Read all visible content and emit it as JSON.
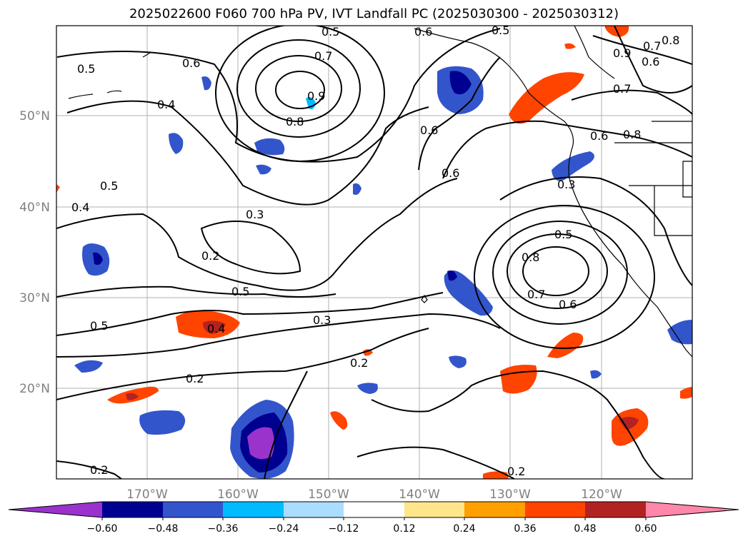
{
  "title": "2025022600 F060 700 hPa PV, IVT Landfall PC (2025030300 - 2025030312)",
  "map": {
    "region": "North-East Pacific",
    "lon_labels": [
      "170°W",
      "160°W",
      "150°W",
      "140°W",
      "130°W",
      "120°W"
    ],
    "lat_labels": [
      "50°N",
      "40°N",
      "30°N",
      "20°N"
    ],
    "grid": true
  },
  "contour_labels": [
    "0.5",
    "0.6",
    "0.4",
    "0.5",
    "0.4",
    "0.6",
    "0.5",
    "0.6",
    "0.7",
    "0.8",
    "0.9",
    "0.6",
    "0.5",
    "0.7",
    "0.6",
    "0.7",
    "0.8",
    "0.8",
    "0.6",
    "0.9",
    "0.3",
    "0.3",
    "0.2",
    "0.5",
    "0.5",
    "0.4",
    "0.3",
    "0.2",
    "0.2",
    "0.5",
    "0.8",
    "0.7",
    "0.6",
    "0.2",
    "0.2"
  ],
  "colorbar": {
    "ticks": [
      "−0.60",
      "−0.48",
      "−0.36",
      "−0.24",
      "−0.12",
      "0.12",
      "0.24",
      "0.36",
      "0.48",
      "0.60"
    ],
    "colors": [
      "#9933cc",
      "#000090",
      "#3355cc",
      "#00bbff",
      "#aaddff",
      "#ffffff",
      "#ffe68a",
      "#ffa000",
      "#ff4400",
      "#b22222",
      "#ff88aa"
    ]
  }
}
